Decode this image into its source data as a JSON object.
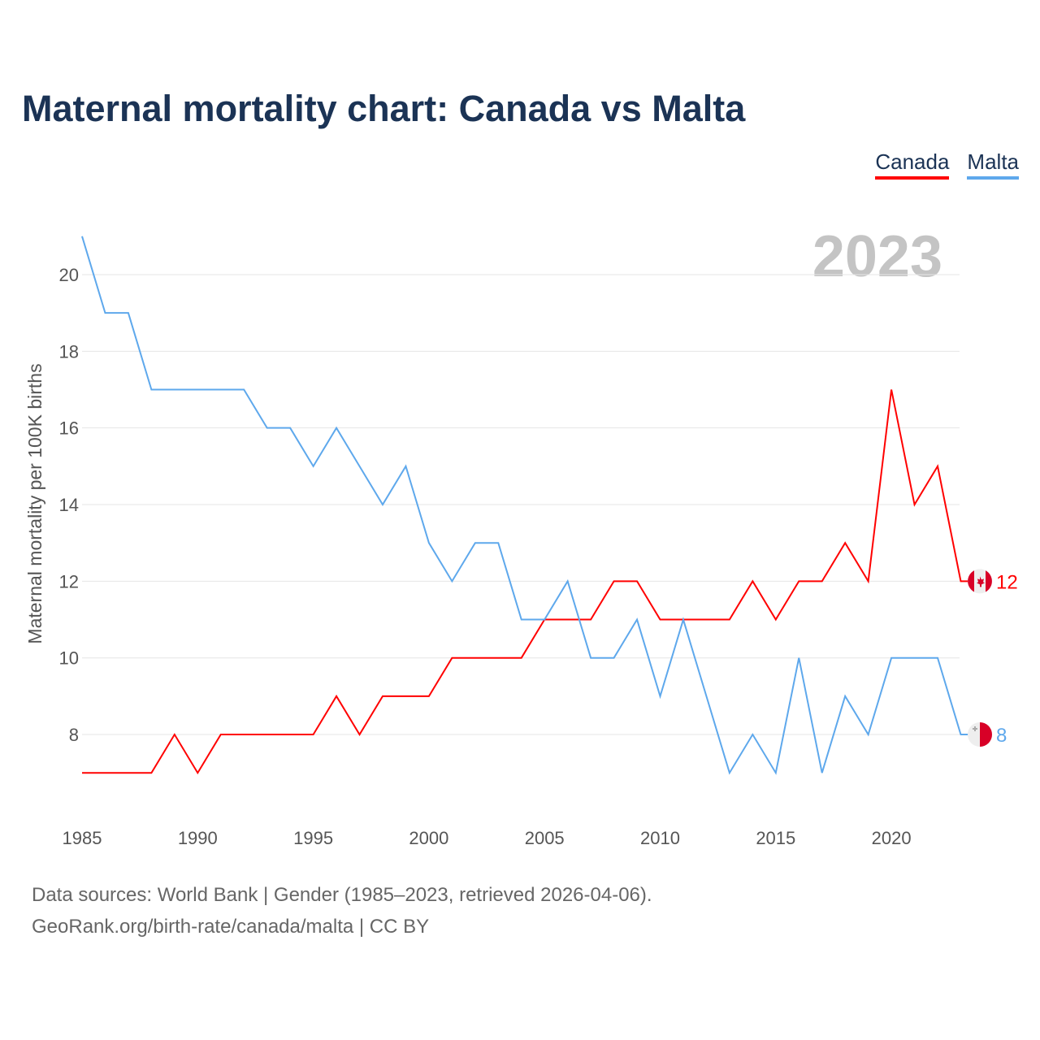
{
  "title": "Maternal mortality chart: Canada vs Malta",
  "footer": {
    "line1": "Data sources: World Bank | Gender (1985–2023, retrieved 2026-04-06).",
    "line2": "GeoRank.org/birth-rate/canada/malta | CC BY"
  },
  "chart_data": {
    "type": "line",
    "title": "Maternal mortality chart: Canada vs Malta",
    "ylabel": "Maternal mortality per 100K births",
    "xlabel": "",
    "year_label": "2023",
    "x": [
      1985,
      1986,
      1987,
      1988,
      1989,
      1990,
      1991,
      1992,
      1993,
      1994,
      1995,
      1996,
      1997,
      1998,
      1999,
      2000,
      2001,
      2002,
      2003,
      2004,
      2005,
      2006,
      2007,
      2008,
      2009,
      2010,
      2011,
      2012,
      2013,
      2014,
      2015,
      2016,
      2017,
      2018,
      2019,
      2020,
      2021,
      2022,
      2023
    ],
    "xticks": [
      "1985",
      "1990",
      "1995",
      "2000",
      "2005",
      "2010",
      "2015",
      "2020"
    ],
    "yticks": [
      "8",
      "10",
      "12",
      "14",
      "16",
      "18",
      "20"
    ],
    "ylim": [
      6,
      21
    ],
    "grid": true,
    "legend_position": "top-right",
    "series": [
      {
        "name": "Canada",
        "color": "#ff0000",
        "end_label": "12",
        "values": [
          7,
          7,
          7,
          7,
          8,
          7,
          8,
          8,
          8,
          8,
          8,
          9,
          8,
          9,
          9,
          9,
          10,
          10,
          10,
          10,
          11,
          11,
          11,
          12,
          12,
          11,
          11,
          11,
          11,
          12,
          11,
          12,
          12,
          13,
          12,
          17,
          14,
          15,
          12
        ]
      },
      {
        "name": "Malta",
        "color": "#5ea8ec",
        "end_label": "8",
        "values": [
          21,
          19,
          19,
          17,
          17,
          17,
          17,
          17,
          16,
          16,
          15,
          16,
          15,
          14,
          15,
          13,
          12,
          13,
          13,
          11,
          11,
          12,
          10,
          10,
          11,
          9,
          11,
          9,
          7,
          8,
          7,
          10,
          7,
          9,
          8,
          10,
          10,
          10,
          8
        ]
      }
    ]
  }
}
